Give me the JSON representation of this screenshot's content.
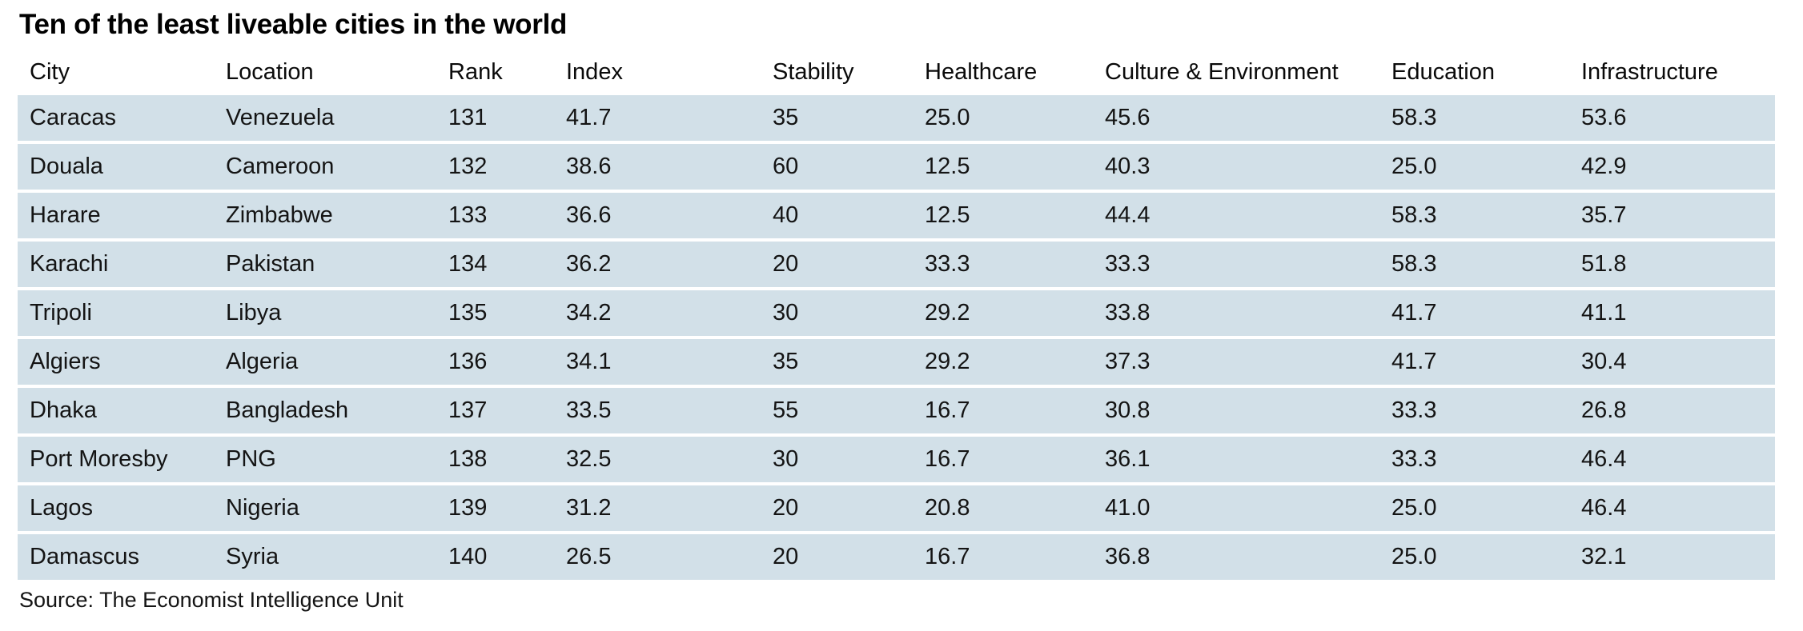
{
  "chart_data": {
    "type": "table",
    "title": "Ten of the least liveable cities in the world",
    "columns": [
      "City",
      "Location",
      "Rank",
      "Index",
      "Stability",
      "Healthcare",
      "Culture & Environment",
      "Education",
      "Infrastructure"
    ],
    "rows": [
      [
        "Caracas",
        "Venezuela",
        "131",
        "41.7",
        "35",
        "25.0",
        "45.6",
        "58.3",
        "53.6"
      ],
      [
        "Douala",
        "Cameroon",
        "132",
        "38.6",
        "60",
        "12.5",
        "40.3",
        "25.0",
        "42.9"
      ],
      [
        "Harare",
        "Zimbabwe",
        "133",
        "36.6",
        "40",
        "12.5",
        "44.4",
        "58.3",
        "35.7"
      ],
      [
        "Karachi",
        "Pakistan",
        "134",
        "36.2",
        "20",
        "33.3",
        "33.3",
        "58.3",
        "51.8"
      ],
      [
        "Tripoli",
        "Libya",
        "135",
        "34.2",
        "30",
        "29.2",
        "33.8",
        "41.7",
        "41.1"
      ],
      [
        "Algiers",
        "Algeria",
        "136",
        "34.1",
        "35",
        "29.2",
        "37.3",
        "41.7",
        "30.4"
      ],
      [
        "Dhaka",
        "Bangladesh",
        "137",
        "33.5",
        "55",
        "16.7",
        "30.8",
        "33.3",
        "26.8"
      ],
      [
        "Port Moresby",
        "PNG",
        "138",
        "32.5",
        "30",
        "16.7",
        "36.1",
        "33.3",
        "46.4"
      ],
      [
        "Lagos",
        "Nigeria",
        "139",
        "31.2",
        "20",
        "20.8",
        "41.0",
        "25.0",
        "46.4"
      ],
      [
        "Damascus",
        "Syria",
        "140",
        "26.5",
        "20",
        "16.7",
        "36.8",
        "25.0",
        "32.1"
      ]
    ],
    "source": "Source: The Economist Intelligence Unit",
    "layout_hints": {
      "grid": "horizontal row bands only, no vertical lines",
      "row_band_style": "solid light blue with thin white gaps"
    }
  },
  "colors": {
    "row_bg": "#d2e0e8",
    "page_bg": "#ffffff",
    "title_text": "#000000",
    "body_text": "#141414"
  }
}
